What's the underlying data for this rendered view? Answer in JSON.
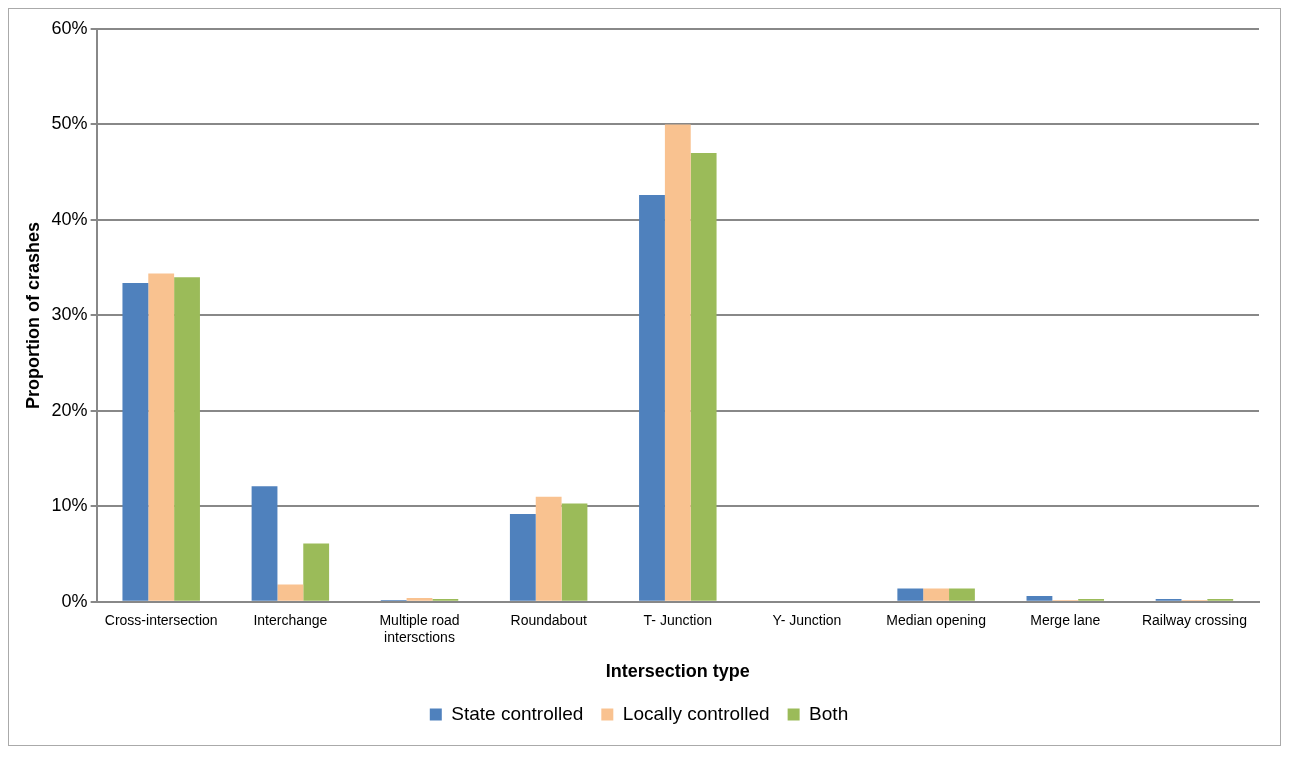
{
  "chart_data": {
    "type": "bar",
    "xlabel": "Intersection type",
    "ylabel": "Proportion of crashes",
    "categories": [
      "Cross-intersection",
      "Interchange",
      "Multiple road intersctions",
      "Roundabout",
      "T- Junction",
      "Y- Junction",
      "Median opening",
      "Merge lane",
      "Railway crossing"
    ],
    "series": [
      {
        "name": "State controlled",
        "color": "#4f81bd",
        "values": [
          33.4,
          12.1,
          0.2,
          9.2,
          42.6,
          0,
          1.4,
          0.6,
          0.3
        ]
      },
      {
        "name": "Locally controlled",
        "color": "#f9c290",
        "values": [
          34.4,
          1.8,
          0.4,
          11.0,
          50.0,
          0,
          1.4,
          0.2,
          0.2
        ]
      },
      {
        "name": "Both",
        "color": "#9bbb59",
        "values": [
          34.0,
          6.1,
          0.3,
          10.3,
          47.0,
          0,
          1.4,
          0.3,
          0.3
        ]
      }
    ],
    "ylim": [
      0,
      60
    ],
    "yticks": [
      {
        "value": 0,
        "label": "0%"
      },
      {
        "value": 10,
        "label": "10%"
      },
      {
        "value": 20,
        "label": "20%"
      },
      {
        "value": 30,
        "label": "30%"
      },
      {
        "value": 40,
        "label": "40%"
      },
      {
        "value": 50,
        "label": "50%"
      },
      {
        "value": 60,
        "label": "60%"
      }
    ],
    "grid": "y",
    "legend": "bottom"
  }
}
